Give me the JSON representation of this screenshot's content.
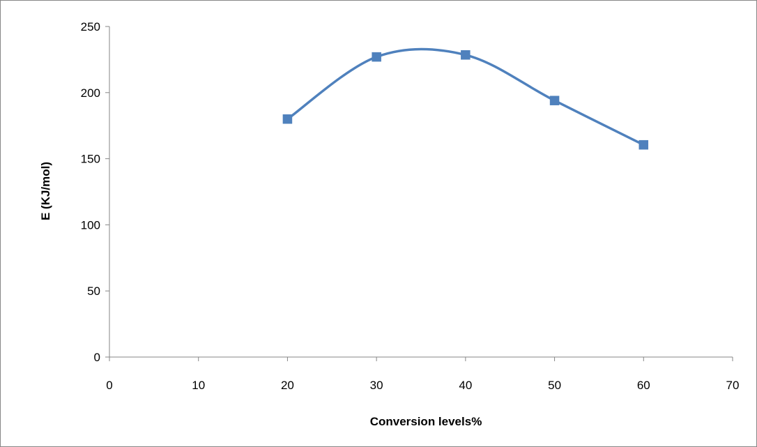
{
  "chart_data": {
    "type": "line",
    "smooth": true,
    "marker": "square",
    "title": "",
    "xlabel": "Conversion levels%",
    "ylabel": "E (KJ/mol)",
    "x": [
      20,
      30,
      40,
      50,
      60
    ],
    "series": [
      {
        "values": [
          180,
          227,
          228.5,
          194,
          160.5
        ]
      }
    ],
    "xlim": [
      0,
      70
    ],
    "ylim": [
      0,
      250
    ],
    "xticks": [
      0,
      10,
      20,
      30,
      40,
      50,
      60,
      70
    ],
    "yticks": [
      0,
      50,
      100,
      150,
      200,
      250
    ],
    "grid": false,
    "legend": "none",
    "colors": {
      "series": "#4F81BD",
      "axis": "#868686",
      "frame": "#868686"
    }
  }
}
